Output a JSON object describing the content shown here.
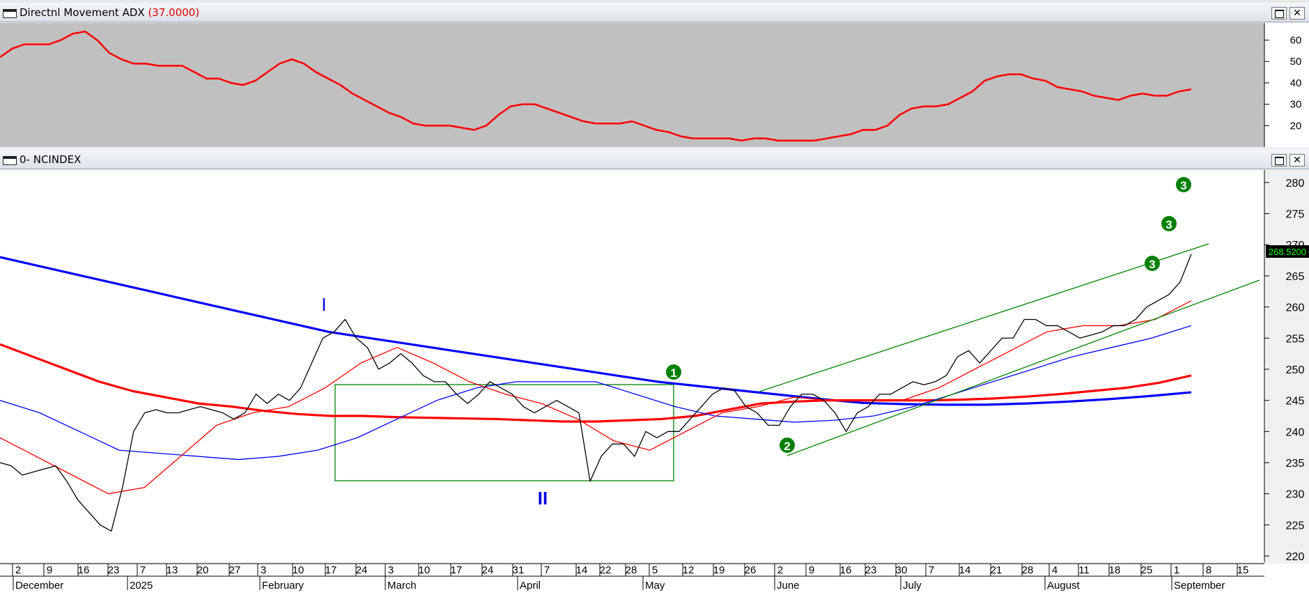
{
  "adx_panel": {
    "title": "Directnl Movement ADX",
    "value": "(37.0000)",
    "y_ticks": [
      "60",
      "50",
      "40",
      "30",
      "20"
    ]
  },
  "price_panel": {
    "title": "0- NCINDEX",
    "price_label": "268.5200",
    "y_ticks": [
      "280",
      "275",
      "270",
      "265",
      "260",
      "255",
      "250",
      "245",
      "240",
      "235",
      "230",
      "225",
      "220"
    ],
    "wave_labels": [
      "I",
      "II"
    ],
    "markers": [
      "1",
      "2",
      "3",
      "3",
      "3"
    ]
  },
  "x_axis": {
    "days": [
      "2",
      "9",
      "16",
      "23",
      "7",
      "13",
      "20",
      "27",
      "3",
      "10",
      "17",
      "24",
      "3",
      "10",
      "17",
      "24",
      "31",
      "7",
      "14",
      "22",
      "28",
      "5",
      "12",
      "19",
      "26",
      "2",
      "9",
      "16",
      "23",
      "30",
      "7",
      "14",
      "21",
      "28",
      "4",
      "11",
      "18",
      "25",
      "1",
      "8",
      "15"
    ],
    "months": [
      "December",
      "2025",
      "February",
      "March",
      "April",
      "May",
      "June",
      "July",
      "August",
      "September"
    ]
  },
  "colors": {
    "adx_line": "#ff0000",
    "price": "#000000",
    "ma_blue": "#0000ff",
    "ma_red": "#ff0000",
    "channel": "#008000",
    "panel_bg_adx": "#c0c0c0",
    "panel_bg_price": "#ffffff"
  },
  "chart_data": [
    {
      "type": "line",
      "title": "Directnl Movement ADX",
      "ylim": [
        10,
        68
      ],
      "series": [
        {
          "name": "ADX",
          "values": [
            52,
            56,
            58,
            58,
            58,
            60,
            63,
            64,
            60,
            54,
            51,
            49,
            49,
            48,
            48,
            48,
            45,
            42,
            42,
            40,
            39,
            41,
            45,
            49,
            51,
            49,
            45,
            42,
            39,
            35,
            32,
            29,
            26,
            24,
            21,
            20,
            20,
            20,
            19,
            18,
            20,
            25,
            29,
            30,
            30,
            28,
            26,
            24,
            22,
            21,
            21,
            21,
            22,
            20,
            18,
            17,
            15,
            14,
            14,
            14,
            14,
            13,
            14,
            14,
            13,
            13,
            13,
            13,
            14,
            15,
            16,
            18,
            18,
            20,
            25,
            28,
            29,
            29,
            30,
            33,
            36,
            41,
            43,
            44,
            44,
            42,
            41,
            38,
            37,
            36,
            34,
            33,
            32,
            34,
            35,
            34,
            34,
            36,
            37
          ]
        }
      ]
    },
    {
      "type": "line",
      "title": "0- NCINDEX",
      "ylim": [
        219,
        282
      ],
      "series": [
        {
          "name": "NCINDEX",
          "values": [
            235,
            234.5,
            233,
            233.5,
            234,
            234.5,
            232,
            229,
            227,
            225,
            224,
            231,
            240,
            243,
            243.5,
            243,
            243,
            243.5,
            244,
            243.5,
            243,
            242,
            243,
            246,
            244.5,
            246,
            245,
            247,
            251,
            255,
            256,
            258,
            255,
            253.5,
            250,
            251,
            252.5,
            251,
            249,
            248,
            248,
            246,
            244.5,
            246,
            248,
            247,
            246,
            244,
            243,
            244,
            245,
            244,
            243,
            232,
            236,
            238,
            238,
            236,
            240,
            239,
            240,
            240,
            242,
            244,
            246,
            247,
            246.5,
            244,
            243,
            241,
            241,
            244,
            246,
            246,
            245,
            243,
            240,
            243,
            244,
            246,
            246,
            247,
            248,
            247.5,
            248,
            249,
            252,
            253,
            251,
            253,
            255,
            255,
            258,
            258,
            257,
            257,
            256,
            255,
            255.5,
            256,
            257,
            257,
            258,
            260,
            261,
            262,
            264,
            268.5
          ]
        },
        {
          "name": "MA blue thick",
          "values": [
            268,
            266.5,
            265,
            263.5,
            262,
            260.5,
            259,
            257.5,
            256,
            255,
            254,
            253,
            252,
            251,
            250,
            249,
            248,
            247.3,
            246.6,
            245.9,
            245.2,
            244.6,
            244.4,
            244.3,
            244.3,
            244.5,
            244.8,
            245.2,
            245.7,
            246.3
          ]
        },
        {
          "name": "MA red thick",
          "values": [
            254,
            252,
            250,
            248,
            246.5,
            245.5,
            244.5,
            244,
            243.3,
            242.8,
            242.5,
            242.5,
            242.3,
            242.2,
            242.1,
            242,
            241.8,
            241.6,
            241.6,
            241.8,
            242,
            242.5,
            243.5,
            244.5,
            244.8,
            245,
            245,
            245,
            245,
            245.1,
            245.3,
            245.6,
            246,
            246.5,
            247,
            247.8,
            249
          ]
        },
        {
          "name": "MA blue thin",
          "values": [
            245,
            243,
            240,
            237,
            236.5,
            236,
            235.5,
            236,
            237,
            239,
            242,
            245,
            247,
            248,
            248,
            248,
            246,
            244,
            242.5,
            242,
            241.5,
            241.8,
            242.5,
            244,
            246,
            248,
            250,
            252,
            253.5,
            255,
            257
          ]
        },
        {
          "name": "MA red thin",
          "values": [
            239,
            236,
            233,
            230,
            231,
            236,
            241,
            243,
            244,
            247,
            251,
            253.5,
            251,
            248,
            246,
            244.5,
            242,
            238.5,
            237,
            240,
            243,
            244,
            245.5,
            245,
            245,
            245,
            247,
            250,
            253,
            256,
            257,
            257,
            258,
            261
          ]
        }
      ]
    }
  ]
}
